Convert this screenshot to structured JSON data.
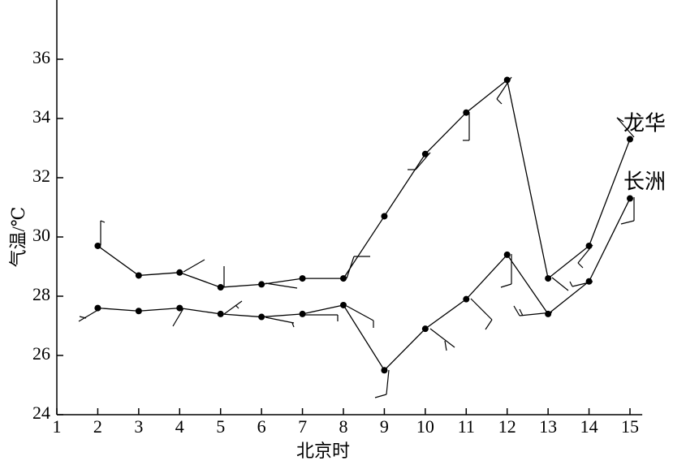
{
  "chart_data": {
    "type": "line",
    "xlabel": "北京时",
    "ylabel": "气温/℃",
    "x": [
      2,
      3,
      4,
      5,
      6,
      7,
      8,
      9,
      10,
      11,
      12,
      13,
      14,
      15
    ],
    "series": [
      {
        "name": "龙华",
        "color": "#000000",
        "values": [
          29.7,
          28.7,
          28.8,
          28.3,
          28.4,
          28.6,
          28.6,
          30.7,
          32.8,
          34.2,
          35.3,
          28.6,
          29.7,
          33.3
        ]
      },
      {
        "name": "长洲",
        "color": "#000000",
        "values": [
          27.6,
          27.5,
          27.6,
          27.4,
          27.3,
          27.4,
          27.7,
          25.5,
          26.9,
          27.9,
          29.4,
          27.4,
          28.5,
          31.3
        ]
      }
    ],
    "xlim": [
      1,
      15.3
    ],
    "ylim": [
      24,
      38
    ],
    "xticks": [
      1,
      2,
      3,
      4,
      5,
      6,
      7,
      8,
      9,
      10,
      11,
      12,
      13,
      14,
      15
    ],
    "yticks": [
      24,
      26,
      28,
      30,
      32,
      34,
      36
    ]
  }
}
